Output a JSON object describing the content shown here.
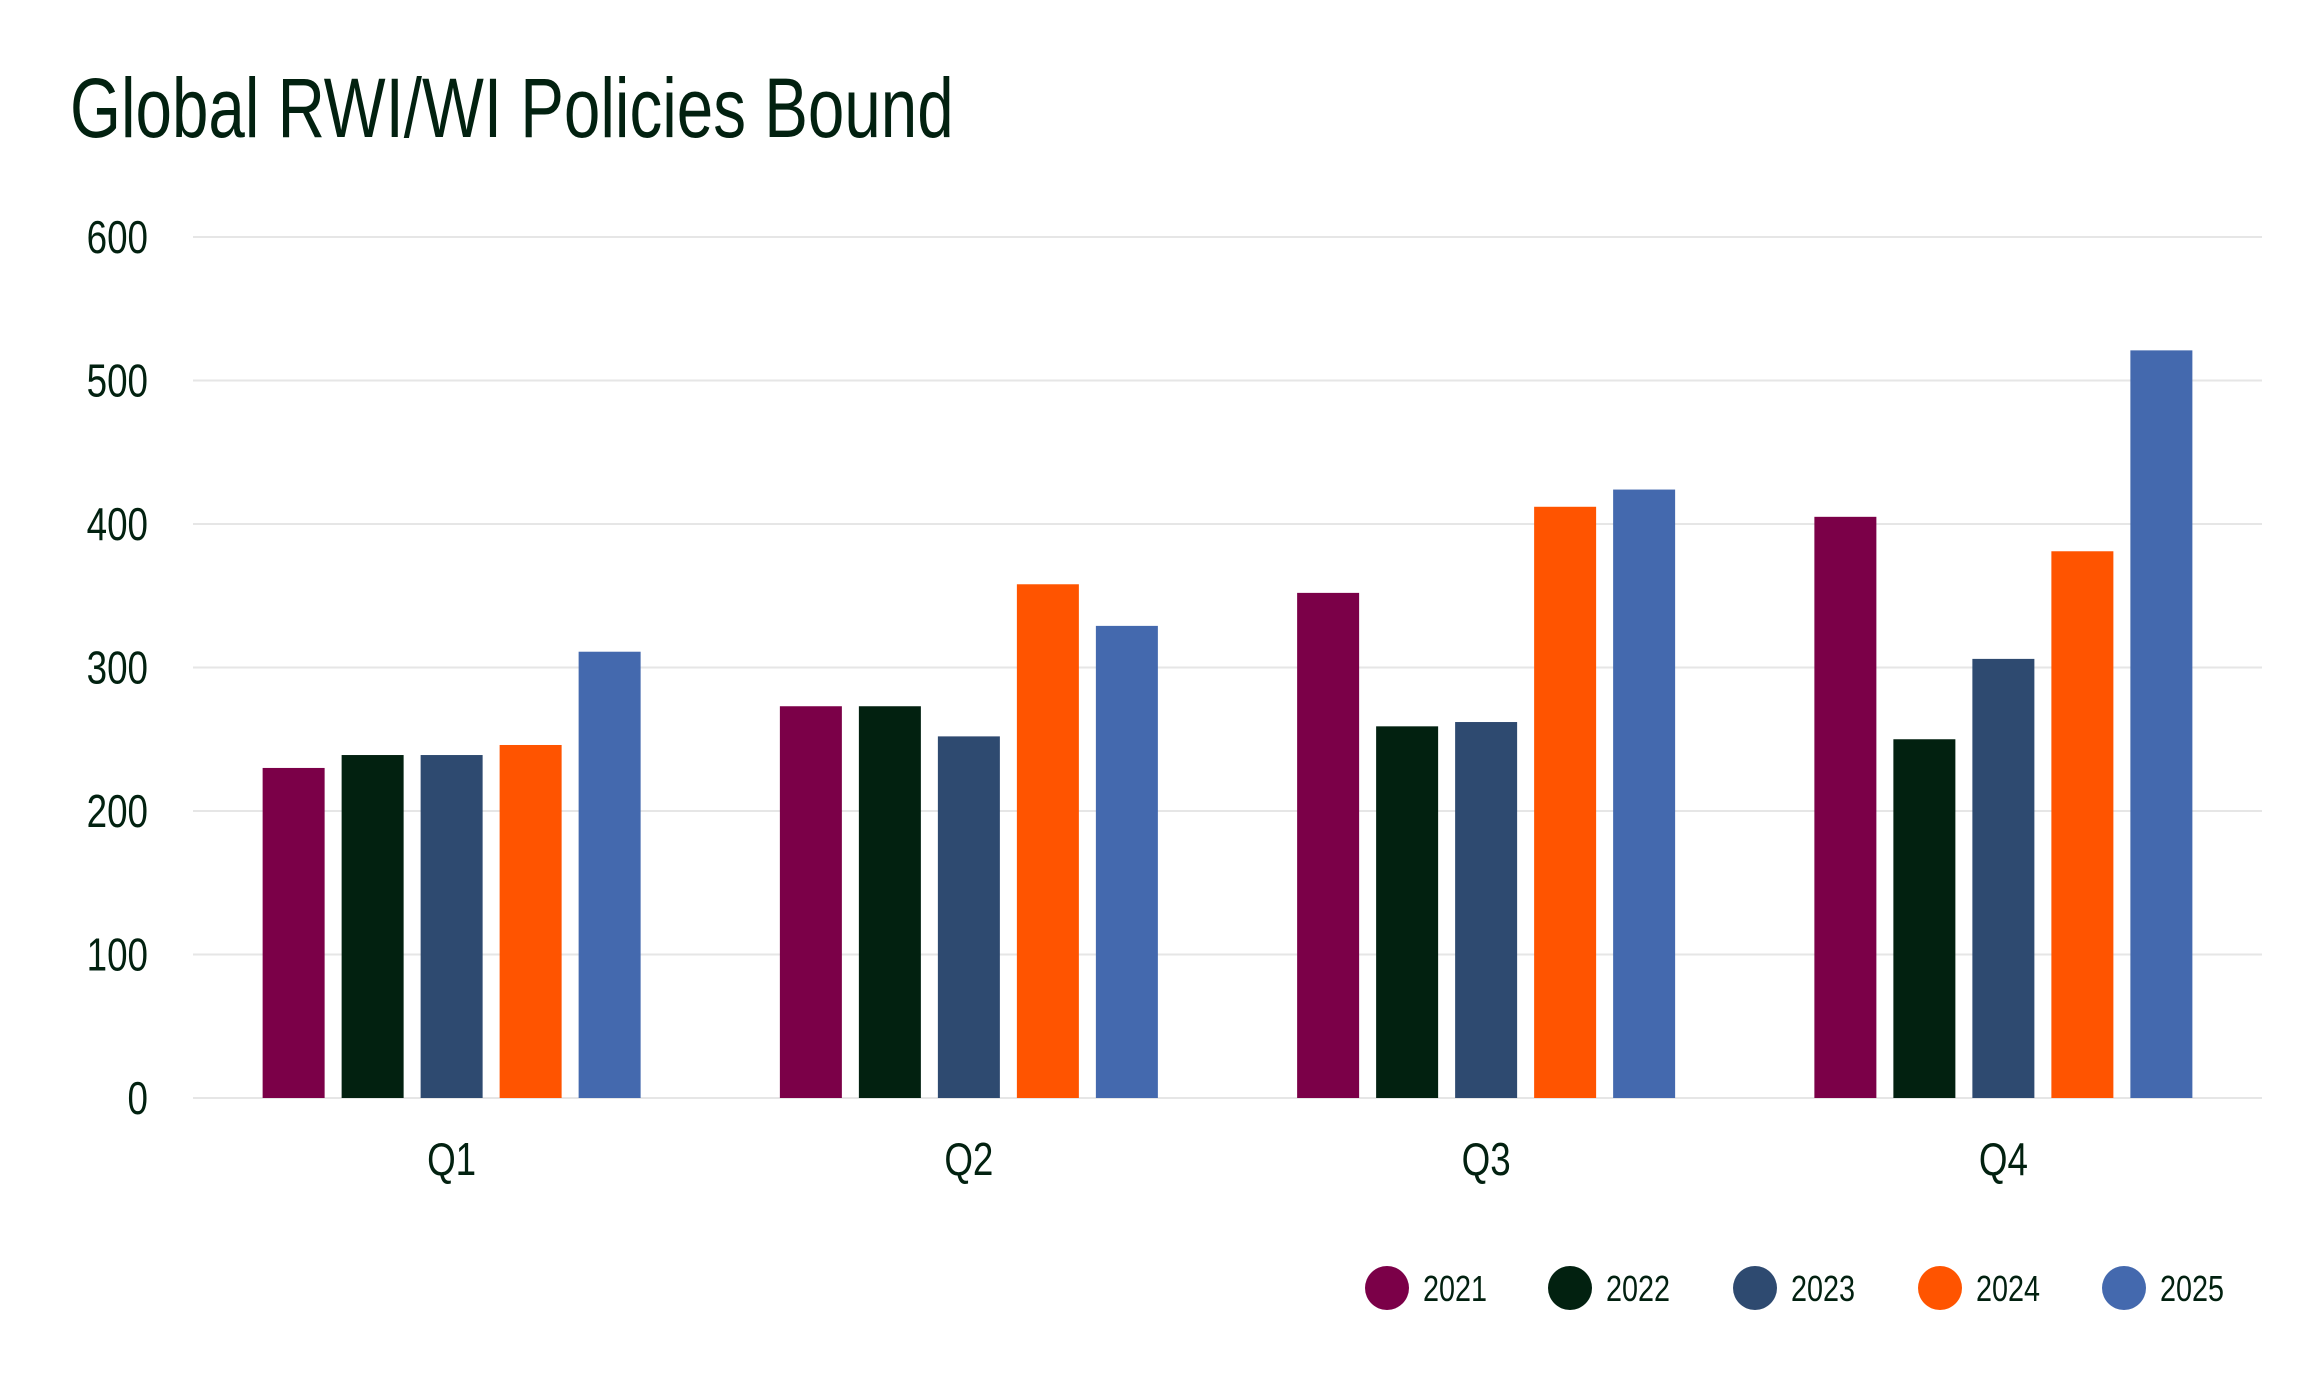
{
  "chart_data": {
    "type": "bar",
    "title": "Global RWI/WI Policies Bound",
    "xlabel": "",
    "ylabel": "",
    "categories": [
      "Q1",
      "Q2",
      "Q3",
      "Q4"
    ],
    "ylim": [
      0,
      600
    ],
    "yticks": [
      "0",
      "100",
      "200",
      "300",
      "400",
      "500",
      "600"
    ],
    "grid": true,
    "legend_position": "bottom-right",
    "series": [
      {
        "name": "2021",
        "color": "#7B0048",
        "values": [
          230,
          273,
          352,
          405
        ]
      },
      {
        "name": "2022",
        "color": "#022110",
        "values": [
          239,
          273,
          259,
          250
        ]
      },
      {
        "name": "2023",
        "color": "#2E4A70",
        "values": [
          239,
          252,
          262,
          306
        ]
      },
      {
        "name": "2024",
        "color": "#FF5400",
        "values": [
          246,
          358,
          412,
          381
        ]
      },
      {
        "name": "2025",
        "color": "#4469AE",
        "values": [
          311,
          329,
          424,
          521
        ]
      }
    ]
  }
}
